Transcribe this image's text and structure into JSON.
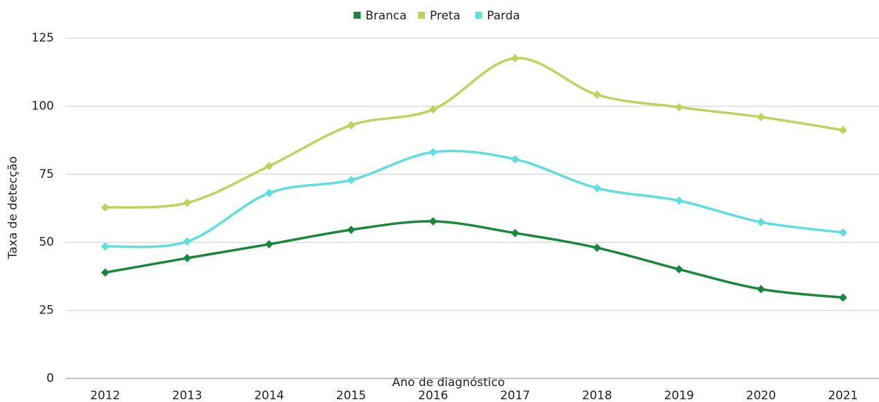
{
  "chart_data": {
    "type": "line",
    "x_label": "Ano de diagnóstico",
    "y_label": "Taxa de detecção",
    "categories": [
      "2012",
      "2013",
      "2014",
      "2015",
      "2016",
      "2017",
      "2018",
      "2019",
      "2020",
      "2021"
    ],
    "series": [
      {
        "name": "Branca",
        "color": "#17873a",
        "values": [
          38.9,
          44.2,
          49.3,
          54.6,
          57.7,
          53.4,
          48,
          40.1,
          32.8,
          29.7
        ]
      },
      {
        "name": "Preta",
        "color": "#bcd45a",
        "values": [
          62.8,
          64.5,
          78,
          93,
          98.8,
          117.6,
          104.2,
          99.6,
          96,
          91.2
        ]
      },
      {
        "name": "Parda",
        "color": "#5ddfe0",
        "values": [
          48.5,
          50.3,
          68.1,
          72.9,
          83.1,
          80.5,
          69.9,
          65.3,
          57.4,
          53.6
        ]
      }
    ],
    "ylim": [
      0,
      125
    ],
    "yticks": [
      0,
      25,
      50,
      75,
      100,
      125
    ],
    "grid": true,
    "legend": "top"
  }
}
